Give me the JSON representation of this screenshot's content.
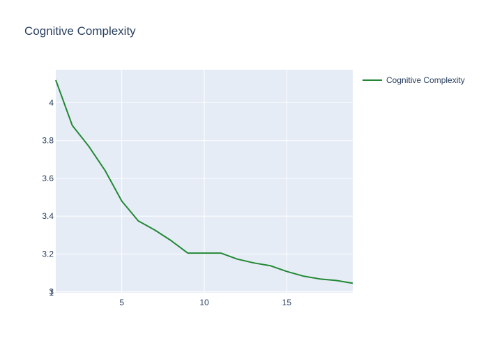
{
  "chart_data": {
    "type": "line",
    "title": "Cognitive Complexity",
    "xlabel": "",
    "ylabel": "",
    "x": [
      1,
      2,
      3,
      4,
      5,
      6,
      7,
      8,
      9,
      10,
      11,
      12,
      13,
      14,
      15,
      16,
      17,
      18,
      19
    ],
    "series": [
      {
        "name": "Cognitive Complexity",
        "color": "#228833",
        "values": [
          4.12,
          3.88,
          3.77,
          3.64,
          3.48,
          3.375,
          3.327,
          3.27,
          3.205,
          3.205,
          3.205,
          3.173,
          3.153,
          3.138,
          3.108,
          3.083,
          3.068,
          3.06,
          3.045
        ]
      }
    ],
    "xlim": [
      1,
      19
    ],
    "ylim": [
      2.995,
      4.175
    ],
    "xticks": [
      5,
      10,
      15
    ],
    "xtick_labels": [
      "5",
      "10",
      "15"
    ],
    "yticks": [
      3,
      3.2,
      3.4,
      3.6,
      3.8,
      4
    ],
    "ytick_labels": [
      "3",
      "3.2",
      "3.4",
      "3.6",
      "3.8",
      "4"
    ],
    "x_range_start_label": "1",
    "grid": true,
    "legend_position": "top-right",
    "plot_background": "#e5ecf6",
    "grid_color": "#ffffff"
  }
}
